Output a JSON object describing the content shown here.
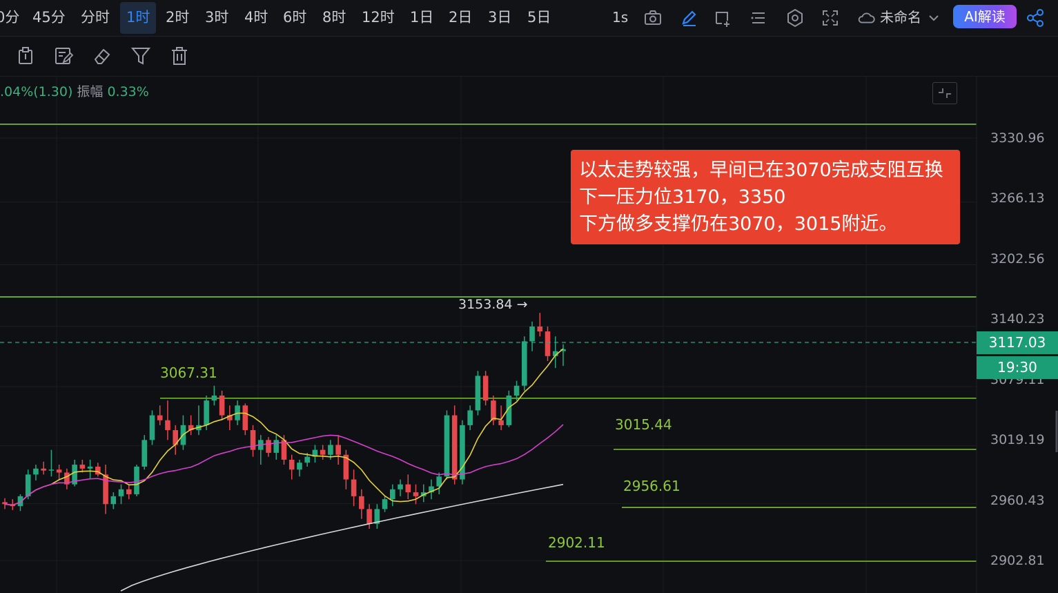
{
  "toolbar": {
    "timeframes": [
      "0分",
      "45分",
      "分时",
      "1时",
      "2时",
      "3时",
      "4时",
      "6时",
      "8时",
      "12时",
      "1日",
      "2日",
      "3日",
      "5日"
    ],
    "active_timeframe": "1时",
    "interval_label": "1s",
    "chart_name": "未命名",
    "ai_button": "AI解读",
    "icons": [
      "camera-icon",
      "pencil-icon",
      "crop-icon",
      "list-icon",
      "settings-hexagon-icon",
      "fullscreen-icon",
      "cloud-icon",
      "chevron-down-icon",
      "share-icon"
    ]
  },
  "drawing_tools": {
    "icons": [
      "clipboard-icon",
      "edit-note-icon",
      "eraser-icon",
      "filter-icon",
      "trash-icon"
    ]
  },
  "info_bar": {
    "change": ".04%(1.30)",
    "amplitude_label": "振幅",
    "amplitude_value": "0.33%"
  },
  "annotation": {
    "lines": [
      "以太走势较强，早间已在3070完成支阻互换",
      "下一压力位3170，3350",
      "下方做多支撑仍在3070，3015附近。"
    ],
    "background": "#e8412d"
  },
  "current_price": "3117.03",
  "countdown": "19:30",
  "high_label": "3153.84",
  "level_labels": [
    "3067.31",
    "3015.44",
    "2956.61",
    "2902.11"
  ],
  "price_axis": [
    "3330.96",
    "3266.13",
    "3202.56",
    "3140.23",
    "3079.11",
    "3019.19",
    "2960.43",
    "2902.81"
  ],
  "colors": {
    "up": "#26a87f",
    "down": "#e5484d",
    "ma_fast": "#e6d23a",
    "ma_mid": "#d63fcf",
    "ma_slow": "#d9d9d9",
    "level_line": "#7bc431",
    "accent": "#2f86f6"
  },
  "chart_data": {
    "type": "candlestick",
    "y_axis_ticks": [
      3330.96,
      3266.13,
      3202.56,
      3140.23,
      3079.11,
      3019.19,
      2960.43,
      2902.81
    ],
    "horizontal_levels": [
      3345,
      3170,
      3067.31,
      3015.44,
      2956.61,
      2902.11
    ],
    "current_price": 3117.03,
    "high": 3153.84,
    "candles": [
      [
        2962,
        2966,
        2955,
        2960
      ],
      [
        2960,
        2965,
        2954,
        2958
      ],
      [
        2958,
        2970,
        2953,
        2968
      ],
      [
        2968,
        2995,
        2965,
        2990
      ],
      [
        2990,
        3000,
        2984,
        2996
      ],
      [
        2996,
        3003,
        2990,
        2994
      ],
      [
        2994,
        3015,
        2988,
        2995
      ],
      [
        2995,
        3000,
        2985,
        2992
      ],
      [
        2992,
        2996,
        2975,
        2980
      ],
      [
        2980,
        3005,
        2978,
        3000
      ],
      [
        3000,
        3005,
        2992,
        2996
      ],
      [
        2996,
        3005,
        2985,
        2998
      ],
      [
        2998,
        3002,
        2988,
        2990
      ],
      [
        2990,
        3000,
        2950,
        2960
      ],
      [
        2960,
        2972,
        2955,
        2968
      ],
      [
        2968,
        2980,
        2960,
        2975
      ],
      [
        2975,
        2980,
        2965,
        2970
      ],
      [
        2970,
        3000,
        2968,
        2998
      ],
      [
        2998,
        3030,
        2995,
        3025
      ],
      [
        3025,
        3055,
        3020,
        3050
      ],
      [
        3050,
        3060,
        3040,
        3045
      ],
      [
        3045,
        3065,
        3025,
        3035
      ],
      [
        3035,
        3040,
        3010,
        3020
      ],
      [
        3020,
        3050,
        3015,
        3040
      ],
      [
        3040,
        3050,
        3030,
        3035
      ],
      [
        3035,
        3060,
        3030,
        3040
      ],
      [
        3040,
        3070,
        3035,
        3065
      ],
      [
        3065,
        3080,
        3060,
        3070
      ],
      [
        3070,
        3075,
        3045,
        3050
      ],
      [
        3050,
        3060,
        3035,
        3045
      ],
      [
        3045,
        3065,
        3040,
        3060
      ],
      [
        3060,
        3062,
        3030,
        3035
      ],
      [
        3035,
        3040,
        3008,
        3015
      ],
      [
        3015,
        3030,
        3000,
        3025
      ],
      [
        3025,
        3028,
        3008,
        3012
      ],
      [
        3012,
        3030,
        3005,
        3025
      ],
      [
        3025,
        3030,
        3000,
        3005
      ],
      [
        3005,
        3010,
        2985,
        2995
      ],
      [
        2995,
        3005,
        2988,
        3002
      ],
      [
        3002,
        3012,
        2998,
        3008
      ],
      [
        3008,
        3020,
        3002,
        3015
      ],
      [
        3015,
        3020,
        3005,
        3010
      ],
      [
        3010,
        3025,
        3005,
        3020
      ],
      [
        3020,
        3030,
        3000,
        3010
      ],
      [
        3010,
        3015,
        2975,
        2985
      ],
      [
        2985,
        2995,
        2958,
        2968
      ],
      [
        2968,
        2975,
        2945,
        2955
      ],
      [
        2955,
        2960,
        2935,
        2940
      ],
      [
        2940,
        2960,
        2935,
        2955
      ],
      [
        2955,
        2968,
        2952,
        2965
      ],
      [
        2965,
        2980,
        2958,
        2975
      ],
      [
        2975,
        2985,
        2968,
        2980
      ],
      [
        2980,
        2990,
        2965,
        2972
      ],
      [
        2972,
        2980,
        2960,
        2968
      ],
      [
        2968,
        2980,
        2962,
        2972
      ],
      [
        2972,
        2985,
        2965,
        2978
      ],
      [
        2978,
        2992,
        2970,
        2988
      ],
      [
        2988,
        3055,
        2985,
        3050
      ],
      [
        3050,
        3060,
        2980,
        2985
      ],
      [
        2985,
        3045,
        2980,
        3040
      ],
      [
        3040,
        3060,
        3035,
        3055
      ],
      [
        3055,
        3095,
        3050,
        3090
      ],
      [
        3090,
        3095,
        3060,
        3065
      ],
      [
        3065,
        3070,
        3040,
        3045
      ],
      [
        3045,
        3060,
        3035,
        3040
      ],
      [
        3040,
        3075,
        3038,
        3070
      ],
      [
        3070,
        3085,
        3065,
        3080
      ],
      [
        3080,
        3130,
        3075,
        3125
      ],
      [
        3125,
        3145,
        3115,
        3140
      ],
      [
        3140,
        3153.84,
        3130,
        3135
      ],
      [
        3135,
        3140,
        3105,
        3110
      ],
      [
        3110,
        3130,
        3098,
        3115
      ],
      [
        3115,
        3122,
        3100,
        3117.03
      ]
    ]
  }
}
